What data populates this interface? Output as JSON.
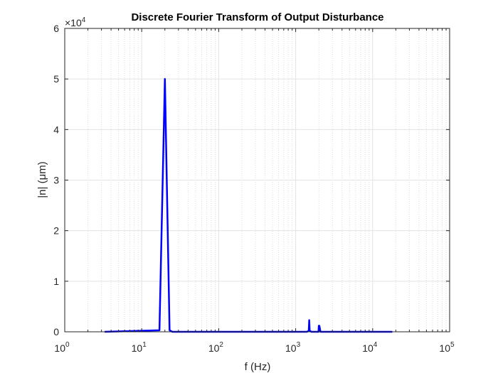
{
  "chart_data": {
    "type": "line",
    "title": "Discrete Fourier Transform of Output Disturbance",
    "xlabel": "f (Hz)",
    "ylabel": "|n| (μm)",
    "x_scale": "log",
    "xlim": [
      1,
      100000
    ],
    "ylim": [
      0,
      60000
    ],
    "x_ticks": [
      1,
      10,
      100,
      1000,
      10000,
      100000
    ],
    "x_tick_labels": [
      {
        "base": "10",
        "exp": "0"
      },
      {
        "base": "10",
        "exp": "1"
      },
      {
        "base": "10",
        "exp": "2"
      },
      {
        "base": "10",
        "exp": "3"
      },
      {
        "base": "10",
        "exp": "4"
      },
      {
        "base": "10",
        "exp": "5"
      }
    ],
    "y_ticks": [
      0,
      10000,
      20000,
      30000,
      40000,
      50000,
      60000
    ],
    "y_tick_labels": [
      "0",
      "1",
      "2",
      "3",
      "4",
      "5",
      "6"
    ],
    "y_multiplier": {
      "base": "×10",
      "exp": "4"
    },
    "grid": true,
    "minor_grid": true,
    "series": [
      {
        "color": "#0000ff",
        "x": [
          3.3,
          17,
          20,
          23,
          25,
          1400,
          1480,
          1500,
          1520,
          1600,
          1980,
          2000,
          2030,
          2100,
          18000
        ],
        "y": [
          0,
          300,
          50000,
          300,
          0,
          0,
          200,
          2300,
          200,
          0,
          0,
          1200,
          1200,
          0,
          0
        ]
      }
    ]
  }
}
